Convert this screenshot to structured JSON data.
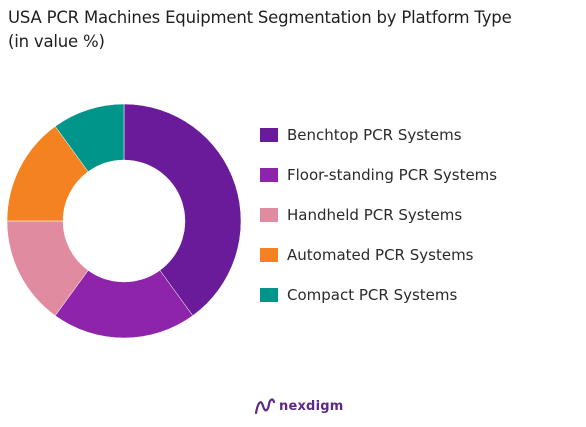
{
  "chart_data": {
    "type": "pie",
    "title_line1": "USA PCR Machines Equipment Segmentation by Platform Type",
    "title_line2": "(in value %)",
    "series": [
      {
        "name": "Benchtop PCR Systems",
        "value": 40,
        "color": "#6a1b9a"
      },
      {
        "name": "Floor-standing PCR Systems",
        "value": 20,
        "color": "#8e24aa"
      },
      {
        "name": "Handheld PCR Systems",
        "value": 15,
        "color": "#e08ba0"
      },
      {
        "name": "Automated PCR Systems",
        "value": 15,
        "color": "#f58220"
      },
      {
        "name": "Compact PCR Systems",
        "value": 10,
        "color": "#00958a"
      }
    ],
    "donut": true,
    "legend_position": "right"
  },
  "brand": {
    "name": "nexdigm",
    "icon": "nexdigm-logo-icon"
  }
}
